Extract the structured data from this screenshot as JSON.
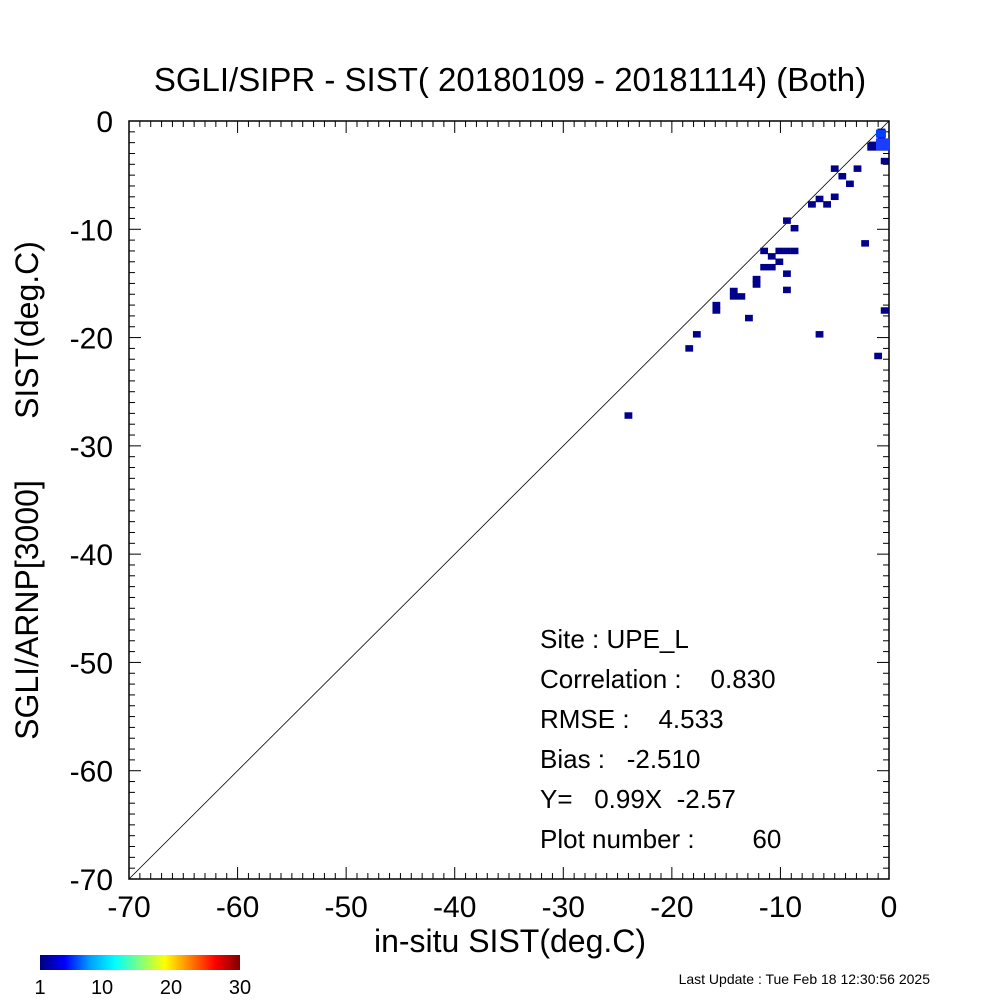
{
  "chart_data": {
    "type": "heatmap",
    "title": "SGLI/SIPR - SIST( 20180109 - 20181114) (Both)",
    "xlabel": "in-situ SIST(deg.C)",
    "ylabel_lines": [
      "SGLI/ARNP[3000]",
      "SIST(deg.C)"
    ],
    "xlim": [
      -70,
      0
    ],
    "ylim": [
      -70,
      0
    ],
    "x_ticks": [
      "-70",
      "-60",
      "-50",
      "-40",
      "-30",
      "-20",
      "-10",
      "0"
    ],
    "y_ticks": [
      "-70",
      "-60",
      "-50",
      "-40",
      "-30",
      "-20",
      "-10",
      "0"
    ],
    "reference_line": "y = x",
    "cell_color": "#00008b",
    "points": [
      {
        "x": -24.0,
        "y": -27.2
      },
      {
        "x": -18.4,
        "y": -21.0
      },
      {
        "x": -17.7,
        "y": -19.7
      },
      {
        "x": -15.9,
        "y": -17.0
      },
      {
        "x": -15.9,
        "y": -17.5
      },
      {
        "x": -14.3,
        "y": -15.7
      },
      {
        "x": -14.3,
        "y": -16.2
      },
      {
        "x": -13.6,
        "y": -16.2
      },
      {
        "x": -12.9,
        "y": -18.2
      },
      {
        "x": -12.2,
        "y": -14.6
      },
      {
        "x": -12.2,
        "y": -15.1
      },
      {
        "x": -11.5,
        "y": -13.5
      },
      {
        "x": -11.5,
        "y": -12.0
      },
      {
        "x": -10.8,
        "y": -13.5
      },
      {
        "x": -10.8,
        "y": -12.5
      },
      {
        "x": -10.1,
        "y": -12.0
      },
      {
        "x": -10.1,
        "y": -13.0
      },
      {
        "x": -9.4,
        "y": -12.0
      },
      {
        "x": -9.4,
        "y": -9.2
      },
      {
        "x": -9.4,
        "y": -14.1
      },
      {
        "x": -9.4,
        "y": -15.6
      },
      {
        "x": -8.7,
        "y": -12.0
      },
      {
        "x": -8.7,
        "y": -9.9
      },
      {
        "x": -7.1,
        "y": -7.7
      },
      {
        "x": -6.4,
        "y": -7.2
      },
      {
        "x": -6.4,
        "y": -19.7
      },
      {
        "x": -5.7,
        "y": -7.7
      },
      {
        "x": -5.0,
        "y": -7.0
      },
      {
        "x": -5.0,
        "y": -4.4
      },
      {
        "x": -4.3,
        "y": -5.1
      },
      {
        "x": -3.6,
        "y": -5.8
      },
      {
        "x": -2.9,
        "y": -4.4
      },
      {
        "x": -2.2,
        "y": -11.3
      },
      {
        "x": -1.5,
        "y": -2.2
      },
      {
        "x": -1.0,
        "y": -21.7
      },
      {
        "x": -0.7,
        "y": -1.0
      },
      {
        "x": -0.7,
        "y": -1.5
      },
      {
        "x": -0.4,
        "y": -3.7
      },
      {
        "x": -0.4,
        "y": -17.5
      }
    ],
    "stats": {
      "site": "Site : UPE_L",
      "correlation": "Correlation :    0.830",
      "rmse": "RMSE :    4.533",
      "bias": "Bias :   -2.510",
      "equation": "Y=   0.99X  -2.57",
      "plot_number": "Plot number :        60"
    },
    "colorbar": {
      "colors": [
        "#00007f",
        "#0000ff",
        "#00a0ff",
        "#00ffff",
        "#7fff7f",
        "#ffff00",
        "#ff8000",
        "#ff0000",
        "#7f0000"
      ],
      "tick_labels": [
        "1",
        "10",
        "20",
        "30"
      ],
      "range": [
        1,
        30
      ]
    },
    "footer": "Last Update : Tue Feb 18 12:30:56 2025"
  }
}
